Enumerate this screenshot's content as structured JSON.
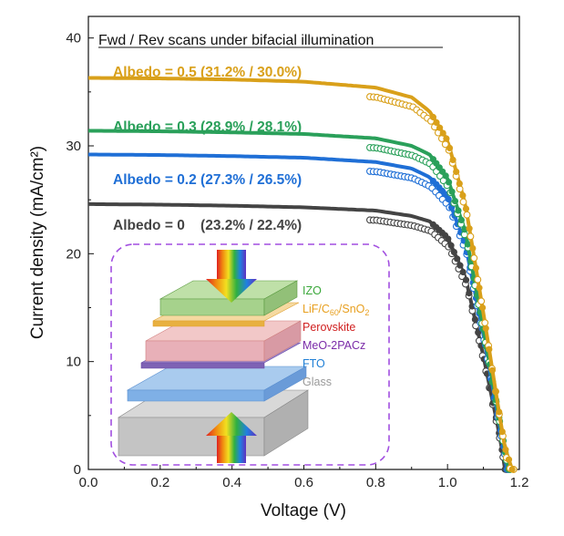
{
  "chart_data": {
    "type": "line",
    "title": "Fwd / Rev scans under bifacial illumination",
    "xlabel": "Voltage (V)",
    "ylabel": "Current density (mA/cm²)",
    "xlim": [
      0.0,
      1.2
    ],
    "ylim": [
      0,
      42
    ],
    "xticks": [
      "0.0",
      "0.2",
      "0.4",
      "0.6",
      "0.8",
      "1.0",
      "1.2"
    ],
    "yticks": [
      "0",
      "10",
      "20",
      "30",
      "40"
    ],
    "grid": false,
    "series": [
      {
        "name": "Albedo = 0.5 (31.2% / 30.0%)",
        "color": "#d9a01a",
        "jsc": 36.3,
        "voc": 1.18,
        "points": [
          [
            0.0,
            36.3
          ],
          [
            0.2,
            36.25
          ],
          [
            0.4,
            36.15
          ],
          [
            0.6,
            35.95
          ],
          [
            0.8,
            35.4
          ],
          [
            0.9,
            34.5
          ],
          [
            0.95,
            33.2
          ],
          [
            1.0,
            30.5
          ],
          [
            1.05,
            24.5
          ],
          [
            1.1,
            14.5
          ],
          [
            1.14,
            6.0
          ],
          [
            1.16,
            2.0
          ],
          [
            1.18,
            0.0
          ]
        ]
      },
      {
        "name": "Albedo = 0.3 (28.9% / 28.1%)",
        "color": "#2aa05a",
        "jsc": 31.4,
        "voc": 1.17,
        "points": [
          [
            0.0,
            31.4
          ],
          [
            0.2,
            31.35
          ],
          [
            0.4,
            31.25
          ],
          [
            0.6,
            31.1
          ],
          [
            0.8,
            30.7
          ],
          [
            0.9,
            30.0
          ],
          [
            0.95,
            29.2
          ],
          [
            1.0,
            27.0
          ],
          [
            1.05,
            22.0
          ],
          [
            1.1,
            13.0
          ],
          [
            1.14,
            5.5
          ],
          [
            1.16,
            1.8
          ],
          [
            1.17,
            0.0
          ]
        ]
      },
      {
        "name": "Albedo = 0.2 (27.3% / 26.5%)",
        "color": "#1f6fd6",
        "jsc": 29.2,
        "voc": 1.165,
        "points": [
          [
            0.0,
            29.2
          ],
          [
            0.2,
            29.15
          ],
          [
            0.4,
            29.05
          ],
          [
            0.6,
            28.9
          ],
          [
            0.8,
            28.5
          ],
          [
            0.9,
            27.9
          ],
          [
            0.95,
            27.1
          ],
          [
            1.0,
            25.3
          ],
          [
            1.05,
            20.8
          ],
          [
            1.1,
            12.5
          ],
          [
            1.14,
            5.0
          ],
          [
            1.16,
            1.5
          ],
          [
            1.165,
            0.0
          ]
        ]
      },
      {
        "name": "Albedo = 0    (23.2% / 22.4%)",
        "color": "#444444",
        "jsc": 24.6,
        "voc": 1.16,
        "points": [
          [
            0.0,
            24.6
          ],
          [
            0.2,
            24.55
          ],
          [
            0.4,
            24.45
          ],
          [
            0.6,
            24.3
          ],
          [
            0.8,
            24.0
          ],
          [
            0.9,
            23.5
          ],
          [
            0.95,
            23.0
          ],
          [
            1.0,
            21.5
          ],
          [
            1.05,
            17.8
          ],
          [
            1.1,
            10.5
          ],
          [
            1.14,
            4.0
          ],
          [
            1.155,
            1.2
          ],
          [
            1.16,
            0.0
          ]
        ]
      }
    ],
    "inset": {
      "layers": [
        {
          "label": "IZO",
          "color": "#3aa83a"
        },
        {
          "label": "LiF/C60/SnO2",
          "color": "#e8a020"
        },
        {
          "label": "Perovskite",
          "color": "#d02020"
        },
        {
          "label": "MeO-2PACz",
          "color": "#7a2aa8"
        },
        {
          "label": "FTO",
          "color": "#1f7fd6"
        },
        {
          "label": "Glass",
          "color": "#999999"
        }
      ],
      "layer_sub": {
        "c": "C",
        "c_sub": "60",
        "mid": "/SnO",
        "mid_sub": "2",
        "pre": "LiF/"
      }
    }
  }
}
